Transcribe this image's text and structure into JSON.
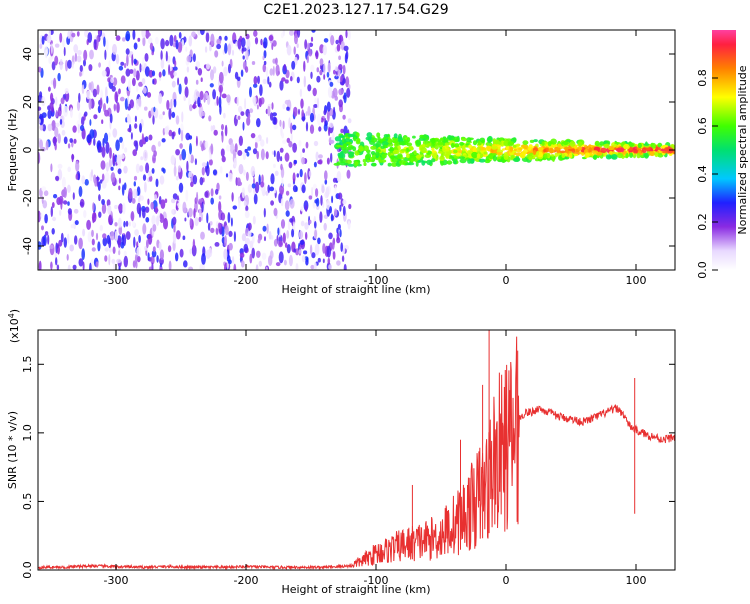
{
  "title": "C2E1.2023.127.17.54.G29",
  "chart_data": [
    {
      "type": "heatmap",
      "xlabel": "Height of straight line (km)",
      "ylabel": "Frequency (Hz)",
      "xlim": [
        -360,
        130
      ],
      "ylim": [
        -50,
        50
      ],
      "x_ticks": [
        -300,
        -200,
        -100,
        0,
        100
      ],
      "y_ticks": [
        -40,
        -20,
        0,
        20,
        40
      ],
      "colorbar": {
        "label": "Normalized spectral amplitude",
        "range": [
          0,
          1
        ],
        "ticks": [
          0.0,
          0.2,
          0.4,
          0.6,
          0.8
        ],
        "tick_labels": [
          "0.0",
          "0.2",
          "0.4",
          "0.6",
          "0.8"
        ]
      },
      "noise_region": {
        "x_range": [
          -360,
          -120
        ],
        "freq_range": [
          -50,
          50
        ],
        "amplitude_range": [
          0.02,
          0.3
        ]
      },
      "signal_band": {
        "x_range": [
          -130,
          130
        ],
        "freq_center": 0,
        "halfwidth_start": 7,
        "halfwidth_end": 2,
        "amplitude_range": [
          0.3,
          0.95
        ]
      }
    },
    {
      "type": "line",
      "xlabel": "Height of straight line (km)",
      "ylabel": "SNR (10 * v/v)",
      "y_multiplier": "(x10",
      "y_multiplier_exp": "4",
      "y_multiplier_close": ")",
      "xlim": [
        -360,
        130
      ],
      "ylim": [
        0,
        1.75
      ],
      "x_ticks": [
        -300,
        -200,
        -100,
        0,
        100
      ],
      "y_ticks": [
        0.0,
        0.5,
        1.0,
        1.5
      ],
      "y_tick_labels": [
        "0.0",
        "0.5",
        "1.0",
        "1.5"
      ],
      "color": "#e83030",
      "series": [
        {
          "x": [
            -360,
            -340,
            -320,
            -300,
            -280,
            -260,
            -240,
            -220,
            -200,
            -180,
            -160,
            -140,
            -120,
            -110,
            -100,
            -90,
            -80,
            -70,
            -60,
            -50,
            -45,
            -40,
            -35,
            -30,
            -25,
            -20,
            -15,
            -12,
            -10,
            -5,
            0,
            5,
            8,
            10,
            15,
            20,
            25,
            30,
            40,
            50,
            60,
            70,
            80,
            85,
            90,
            95,
            100,
            105,
            110,
            115,
            120,
            125,
            130
          ],
          "y": [
            0.02,
            0.02,
            0.03,
            0.025,
            0.02,
            0.025,
            0.02,
            0.02,
            0.025,
            0.02,
            0.02,
            0.02,
            0.03,
            0.07,
            0.12,
            0.15,
            0.18,
            0.2,
            0.22,
            0.25,
            0.3,
            0.33,
            0.37,
            0.42,
            0.48,
            0.55,
            0.62,
            0.7,
            0.78,
            0.85,
            0.9,
            0.95,
            1.0,
            1.1,
            1.15,
            1.15,
            1.18,
            1.16,
            1.12,
            1.1,
            1.08,
            1.12,
            1.16,
            1.18,
            1.14,
            1.05,
            1.02,
            1.0,
            0.98,
            0.97,
            0.95,
            0.96,
            0.97
          ]
        }
      ],
      "spikes": [
        {
          "x": -13,
          "y": 1.75
        },
        {
          "x": 9,
          "y": 1.6
        },
        {
          "x": -35,
          "y": 0.95
        },
        {
          "x": 99,
          "y": 1.4
        },
        {
          "x": -72,
          "y": 0.62
        },
        {
          "x": -18,
          "y": 1.35
        }
      ]
    }
  ]
}
